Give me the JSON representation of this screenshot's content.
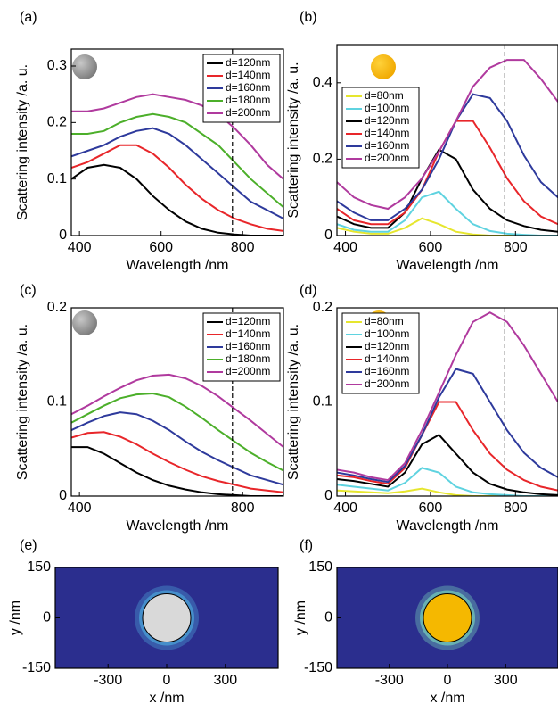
{
  "chart_data": [
    {
      "type": "line",
      "panel_label": "(a)",
      "xlabel": "Wavelength /nm",
      "ylabel": "Scattering intensity /a. u.",
      "x": [
        380,
        420,
        460,
        500,
        540,
        580,
        620,
        660,
        700,
        740,
        780,
        820,
        860,
        900
      ],
      "xlim": [
        380,
        900
      ],
      "xticks": [
        400,
        600,
        800
      ],
      "ylim": [
        0,
        0.33
      ],
      "yticks": [
        0,
        0.1,
        0.2,
        0.3
      ],
      "vline": 775,
      "legend": "upper right",
      "particle_color": "#9a9a9a",
      "series": [
        {
          "name": "d=120nm",
          "color": "#000000",
          "values": [
            0.1,
            0.12,
            0.125,
            0.12,
            0.1,
            0.07,
            0.045,
            0.025,
            0.012,
            0.005,
            0.002,
            0.0,
            0.0,
            0.0
          ]
        },
        {
          "name": "d=140nm",
          "color": "#e8262a",
          "values": [
            0.12,
            0.13,
            0.145,
            0.16,
            0.16,
            0.145,
            0.12,
            0.09,
            0.065,
            0.045,
            0.03,
            0.02,
            0.012,
            0.008
          ]
        },
        {
          "name": "d=160nm",
          "color": "#2e3a9c",
          "values": [
            0.14,
            0.15,
            0.16,
            0.175,
            0.185,
            0.19,
            0.18,
            0.16,
            0.135,
            0.11,
            0.085,
            0.06,
            0.045,
            0.03
          ]
        },
        {
          "name": "d=180nm",
          "color": "#4caf2a",
          "values": [
            0.18,
            0.18,
            0.185,
            0.2,
            0.21,
            0.215,
            0.21,
            0.2,
            0.18,
            0.16,
            0.13,
            0.1,
            0.075,
            0.05
          ]
        },
        {
          "name": "d=200nm",
          "color": "#b03a9e",
          "values": [
            0.22,
            0.22,
            0.225,
            0.235,
            0.245,
            0.25,
            0.245,
            0.24,
            0.23,
            0.215,
            0.19,
            0.16,
            0.125,
            0.1
          ]
        }
      ]
    },
    {
      "type": "line",
      "panel_label": "(b)",
      "xlabel": "Wavelength /nm",
      "ylabel": "Scattering intensity /a. u.",
      "x": [
        380,
        420,
        460,
        500,
        540,
        580,
        620,
        660,
        700,
        740,
        780,
        820,
        860,
        900
      ],
      "xlim": [
        380,
        900
      ],
      "xticks": [
        400,
        600,
        800
      ],
      "ylim": [
        0,
        0.5
      ],
      "yticks": [
        0,
        0.2,
        0.4
      ],
      "vline": 775,
      "legend": "left",
      "particle_color": "#f5b800",
      "series": [
        {
          "name": "d=80nm",
          "color": "#e6e62e",
          "values": [
            0.02,
            0.01,
            0.005,
            0.005,
            0.02,
            0.045,
            0.03,
            0.01,
            0.003,
            0,
            0,
            0,
            0,
            0
          ]
        },
        {
          "name": "d=100nm",
          "color": "#5fd3e0",
          "values": [
            0.03,
            0.015,
            0.01,
            0.01,
            0.04,
            0.1,
            0.115,
            0.07,
            0.03,
            0.012,
            0.005,
            0.002,
            0,
            0
          ]
        },
        {
          "name": "d=120nm",
          "color": "#000000",
          "values": [
            0.05,
            0.03,
            0.02,
            0.02,
            0.06,
            0.15,
            0.225,
            0.2,
            0.12,
            0.07,
            0.04,
            0.025,
            0.015,
            0.01
          ]
        },
        {
          "name": "d=140nm",
          "color": "#e8262a",
          "values": [
            0.07,
            0.04,
            0.03,
            0.03,
            0.06,
            0.12,
            0.22,
            0.3,
            0.3,
            0.23,
            0.15,
            0.09,
            0.05,
            0.03
          ]
        },
        {
          "name": "d=160nm",
          "color": "#2e3a9c",
          "values": [
            0.09,
            0.06,
            0.04,
            0.04,
            0.07,
            0.12,
            0.2,
            0.3,
            0.37,
            0.36,
            0.3,
            0.21,
            0.14,
            0.1
          ]
        },
        {
          "name": "d=200nm",
          "color": "#b03a9e",
          "values": [
            0.14,
            0.1,
            0.08,
            0.07,
            0.1,
            0.15,
            0.22,
            0.3,
            0.39,
            0.44,
            0.46,
            0.46,
            0.41,
            0.35
          ]
        }
      ]
    },
    {
      "type": "line",
      "panel_label": "(c)",
      "xlabel": "Wavelength /nm",
      "ylabel": "Scattering intensity /a. u.",
      "x": [
        380,
        420,
        460,
        500,
        540,
        580,
        620,
        660,
        700,
        740,
        780,
        820,
        860,
        900
      ],
      "xlim": [
        380,
        900
      ],
      "xticks": [
        400,
        800
      ],
      "ylim": [
        0,
        0.2
      ],
      "yticks": [
        0,
        0.1,
        0.2
      ],
      "vline": 775,
      "legend": "upper right",
      "particle_color": "#9a9a9a",
      "series": [
        {
          "name": "d=120nm",
          "color": "#000000",
          "values": [
            0.052,
            0.052,
            0.045,
            0.035,
            0.025,
            0.017,
            0.011,
            0.007,
            0.004,
            0.002,
            0.001,
            0,
            0,
            0
          ]
        },
        {
          "name": "d=140nm",
          "color": "#e8262a",
          "values": [
            0.062,
            0.067,
            0.068,
            0.063,
            0.055,
            0.045,
            0.036,
            0.028,
            0.021,
            0.016,
            0.012,
            0.008,
            0.006,
            0.004
          ]
        },
        {
          "name": "d=160nm",
          "color": "#2e3a9c",
          "values": [
            0.07,
            0.078,
            0.085,
            0.089,
            0.087,
            0.08,
            0.07,
            0.058,
            0.047,
            0.038,
            0.03,
            0.022,
            0.017,
            0.012
          ]
        },
        {
          "name": "d=180nm",
          "color": "#4caf2a",
          "values": [
            0.078,
            0.087,
            0.096,
            0.104,
            0.108,
            0.109,
            0.105,
            0.095,
            0.083,
            0.07,
            0.058,
            0.046,
            0.036,
            0.027
          ]
        },
        {
          "name": "d=200nm",
          "color": "#b03a9e",
          "values": [
            0.087,
            0.096,
            0.106,
            0.115,
            0.123,
            0.128,
            0.129,
            0.125,
            0.117,
            0.106,
            0.093,
            0.08,
            0.066,
            0.052
          ]
        }
      ]
    },
    {
      "type": "line",
      "panel_label": "(d)",
      "xlabel": "Wavelength /nm",
      "ylabel": "Scattering intensity /a. u.",
      "x": [
        380,
        420,
        460,
        500,
        540,
        580,
        620,
        660,
        700,
        740,
        780,
        820,
        860,
        900
      ],
      "xlim": [
        380,
        900
      ],
      "xticks": [
        400,
        600,
        800
      ],
      "ylim": [
        0,
        0.2
      ],
      "yticks": [
        0,
        0.1,
        0.2
      ],
      "vline": 775,
      "legend": "upper left",
      "particle_color": "#f5b800",
      "series": [
        {
          "name": "d=80nm",
          "color": "#e6e62e",
          "values": [
            0.006,
            0.005,
            0.004,
            0.003,
            0.005,
            0.008,
            0.004,
            0.001,
            0,
            0,
            0,
            0,
            0,
            0
          ]
        },
        {
          "name": "d=100nm",
          "color": "#5fd3e0",
          "values": [
            0.012,
            0.01,
            0.008,
            0.006,
            0.014,
            0.03,
            0.025,
            0.01,
            0.004,
            0.002,
            0.001,
            0,
            0,
            0
          ]
        },
        {
          "name": "d=120nm",
          "color": "#000000",
          "values": [
            0.018,
            0.016,
            0.013,
            0.01,
            0.025,
            0.055,
            0.065,
            0.045,
            0.025,
            0.013,
            0.007,
            0.004,
            0.002,
            0.001
          ]
        },
        {
          "name": "d=140nm",
          "color": "#e8262a",
          "values": [
            0.022,
            0.02,
            0.016,
            0.013,
            0.03,
            0.065,
            0.1,
            0.1,
            0.07,
            0.045,
            0.028,
            0.017,
            0.01,
            0.006
          ]
        },
        {
          "name": "d=160nm",
          "color": "#2e3a9c",
          "values": [
            0.025,
            0.022,
            0.018,
            0.015,
            0.032,
            0.065,
            0.105,
            0.135,
            0.13,
            0.1,
            0.07,
            0.046,
            0.03,
            0.02
          ]
        },
        {
          "name": "d=200nm",
          "color": "#b03a9e",
          "values": [
            0.028,
            0.025,
            0.02,
            0.017,
            0.035,
            0.07,
            0.11,
            0.15,
            0.185,
            0.195,
            0.185,
            0.16,
            0.13,
            0.1
          ]
        }
      ]
    },
    {
      "type": "heatmap",
      "panel_label": "(e)",
      "xlabel": "x /nm",
      "ylabel": "y /nm",
      "xlim": [
        -570,
        570
      ],
      "xticks": [
        -300,
        0,
        300
      ],
      "ylim": [
        -150,
        150
      ],
      "yticks": [
        -150,
        0,
        150
      ],
      "background_color": "#2b2e8e",
      "particle_color": "#d9d9d9",
      "glow_color": "#4fb0e0"
    },
    {
      "type": "heatmap",
      "panel_label": "(f)",
      "xlabel": "x /nm",
      "ylabel": "y /nm",
      "xlim": [
        -570,
        570
      ],
      "xticks": [
        -300,
        0,
        300
      ],
      "ylim": [
        -150,
        150
      ],
      "yticks": [
        -150,
        0,
        150
      ],
      "background_color": "#2b2e8e",
      "particle_color": "#f5b800",
      "glow_color": "#7fe0c0"
    }
  ]
}
